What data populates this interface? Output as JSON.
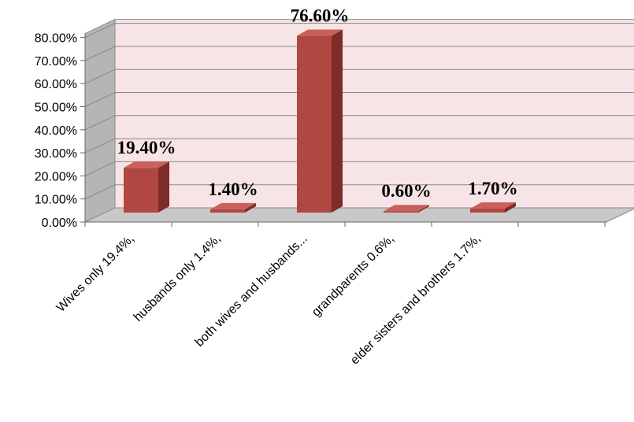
{
  "chart_data": {
    "type": "bar",
    "title": "",
    "xlabel": "",
    "ylabel": "",
    "categories": [
      "Wives only 19.4%,",
      "husbands only 1.4%,",
      "both wives and husbands...",
      "grandparents 0.6%,",
      "elder sisters and brothers 1.7%,"
    ],
    "values": [
      19.4,
      1.4,
      76.6,
      0.6,
      1.7
    ],
    "data_labels": [
      "19.40%",
      "1.40%",
      "76.60%",
      "0.60%",
      "1.70%"
    ],
    "yticks": [
      "0.00%",
      "10.00%",
      "20.00%",
      "30.00%",
      "40.00%",
      "50.00%",
      "60.00%",
      "70.00%",
      "80.00%"
    ],
    "ylim": [
      0,
      80
    ],
    "grid": true,
    "legend": "none",
    "style": "3d-column",
    "colors": {
      "bar_front": "#b04743",
      "bar_side": "#7f2b28",
      "bar_top": "#c9605b",
      "back_wall": "#f7e4e6",
      "side_wall": "#b5b5b5",
      "floor": "#c8c8c8",
      "gridline": "#888888"
    }
  }
}
